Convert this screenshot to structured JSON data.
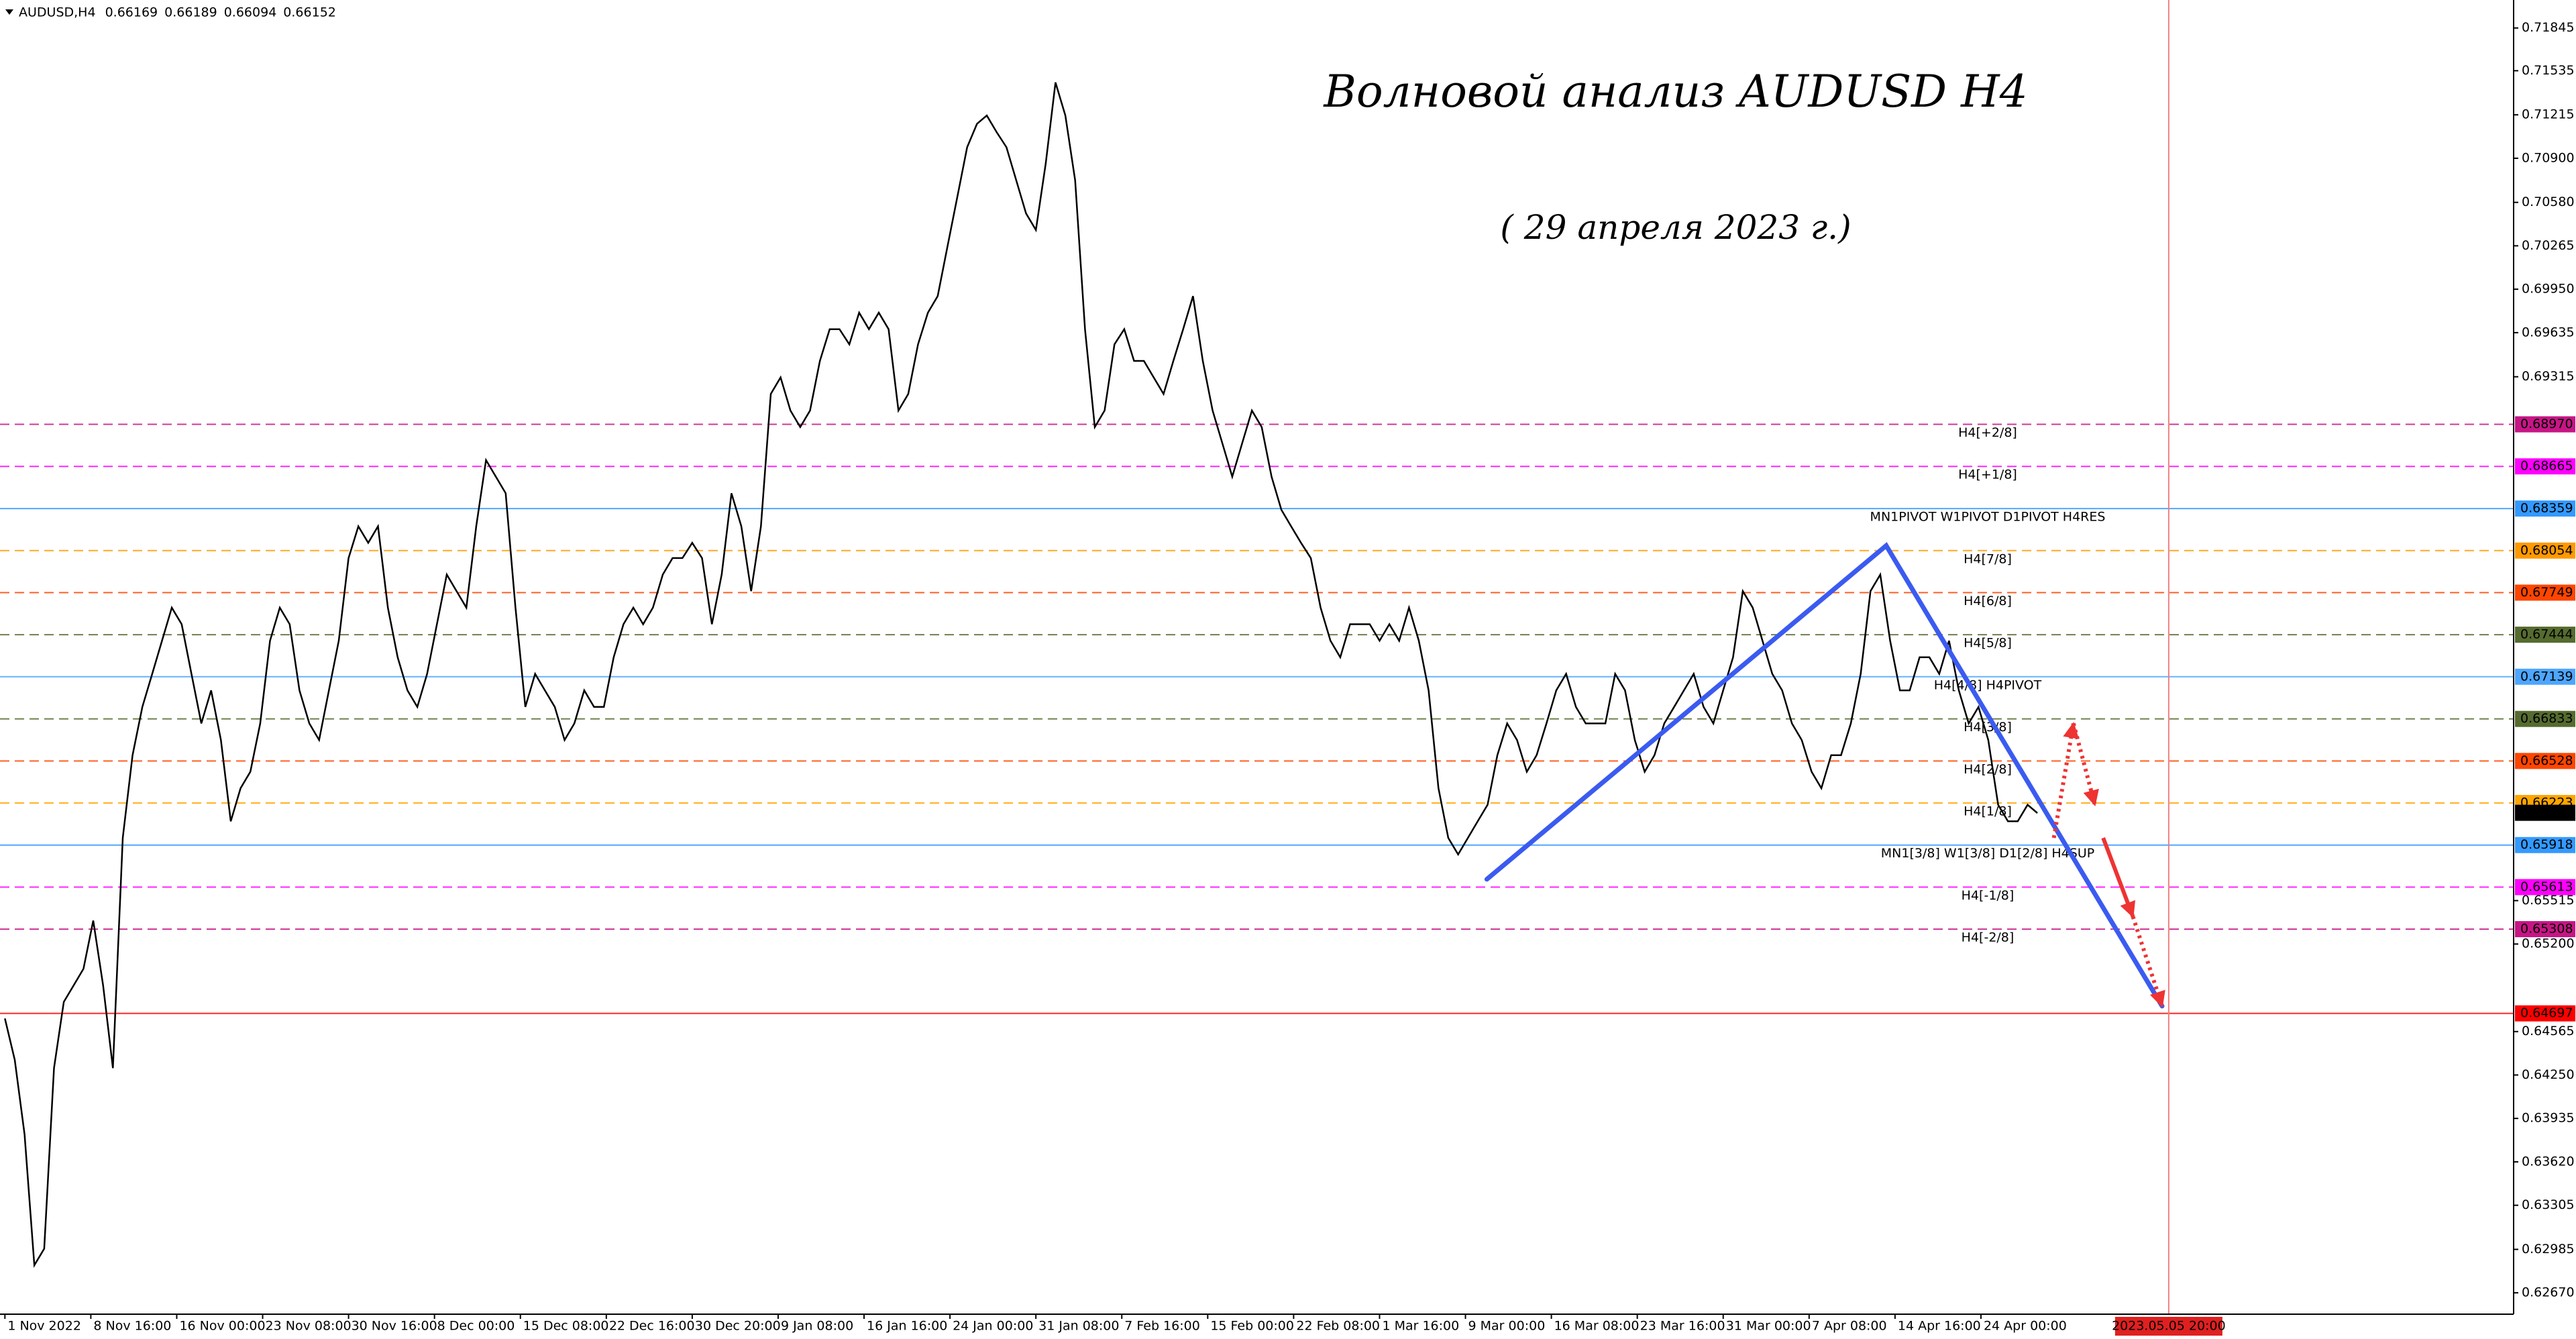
{
  "chart_data": {
    "type": "line",
    "symbol": "AUDUSD,H4",
    "quote": [
      0.66169,
      0.66189,
      0.66094,
      0.66152
    ],
    "title": "Волновой анализ AUDUSD H4",
    "subtitle": "( 29 апреля 2023 г.)",
    "xlim": [
      -2,
      1022
    ],
    "ylim": [
      0.62515,
      0.72048
    ],
    "xticks": [
      {
        "value": 0,
        "label": "1 Nov 2022"
      },
      {
        "value": 35,
        "label": "8 Nov 16:00"
      },
      {
        "value": 70,
        "label": "16 Nov 00:00"
      },
      {
        "value": 105,
        "label": "23 Nov 08:00"
      },
      {
        "value": 140,
        "label": "30 Nov 16:00"
      },
      {
        "value": 175,
        "label": "8 Dec 00:00"
      },
      {
        "value": 210,
        "label": "15 Dec 08:00"
      },
      {
        "value": 245,
        "label": "22 Dec 16:00"
      },
      {
        "value": 280,
        "label": "30 Dec 20:00"
      },
      {
        "value": 315,
        "label": "9 Jan 08:00"
      },
      {
        "value": 350,
        "label": "16 Jan 16:00"
      },
      {
        "value": 385,
        "label": "24 Jan 00:00"
      },
      {
        "value": 420,
        "label": "31 Jan 08:00"
      },
      {
        "value": 455,
        "label": "7 Feb 16:00"
      },
      {
        "value": 490,
        "label": "15 Feb 00:00"
      },
      {
        "value": 525,
        "label": "22 Feb 08:00"
      },
      {
        "value": 560,
        "label": "1 Mar 16:00"
      },
      {
        "value": 595,
        "label": "9 Mar 00:00"
      },
      {
        "value": 630,
        "label": "16 Mar 08:00"
      },
      {
        "value": 665,
        "label": "23 Mar 16:00"
      },
      {
        "value": 700,
        "label": "31 Mar 00:00"
      },
      {
        "value": 735,
        "label": "7 Apr 08:00"
      },
      {
        "value": 770,
        "label": "14 Apr 16:00"
      },
      {
        "value": 805,
        "label": "24 Apr 00:00"
      }
    ],
    "yticks": [
      0.71845,
      0.71535,
      0.71215,
      {
        "value": 0.709,
        "label": "0.70900"
      },
      {
        "value": 0.7058,
        "label": "0.70580"
      },
      0.70265,
      {
        "value": 0.6995,
        "label": "0.69950"
      },
      0.69635,
      0.69315,
      0.65515,
      {
        "value": 0.652,
        "label": "0.65200"
      },
      0.64565,
      {
        "value": 0.6425,
        "label": "0.64250"
      },
      0.63935,
      {
        "value": 0.6362,
        "label": "0.63620"
      },
      0.63305,
      0.62985,
      {
        "value": 0.6267,
        "label": "0.62670"
      }
    ],
    "vline": {
      "value": 881.5,
      "label": "2023.05.05 20:00",
      "color": "#f08080"
    },
    "levels": {
      "names": [
        "H4[+2/8]",
        "H4[+1/8]",
        "MN1PIVOT W1PIVOT D1PIVOT H4RES",
        "H4[7/8]",
        "H4[6/8]",
        "H4[5/8]",
        "H4[4/8] H4PIVOT",
        "H4[3/8]",
        "H4[2/8]",
        "H4[1/8]",
        "MN1[3/8] W1[3/8] D1[2/8] H4SUP",
        "H4[-1/8]",
        "H4[-2/8]",
        null
      ],
      "values": [
        0.6897,
        0.68665,
        0.68359,
        0.68054,
        0.67749,
        0.67444,
        0.67139,
        0.66833,
        0.66528,
        0.66223,
        0.65918,
        0.65613,
        0.65308,
        0.64697
      ],
      "value_labels": [
        "0.68970",
        "0.68665",
        "0.68359",
        "0.68054",
        "0.67749",
        "0.67444",
        "0.67139",
        "0.66833",
        "0.66528",
        "0.66223",
        "0.65918",
        "0.65613",
        "0.65308",
        "0.64697"
      ],
      "colors": [
        "#c71585",
        "#ff00ff",
        "#3399ff",
        "#ff9900",
        "#ff4500",
        "#556b2f",
        "#4da6ff",
        "#556b2f",
        "#ff4500",
        "#ffa500",
        "#3399ff",
        "#ff00ff",
        "#c71585",
        "#ff0000"
      ],
      "dashed": [
        true,
        true,
        false,
        true,
        true,
        true,
        false,
        true,
        true,
        true,
        false,
        true,
        true,
        false
      ]
    },
    "series": [
      {
        "name": "AUDUSD",
        "color": "#000000",
        "x": [
          0,
          4,
          8,
          12,
          16,
          20,
          24,
          28,
          32,
          36,
          40,
          44,
          48,
          52,
          56,
          60,
          64,
          68,
          72,
          76,
          80,
          84,
          88,
          92,
          96,
          100,
          104,
          108,
          112,
          116,
          120,
          124,
          128,
          132,
          136,
          140,
          144,
          148,
          152,
          156,
          160,
          164,
          168,
          172,
          176,
          180,
          184,
          188,
          192,
          196,
          200,
          204,
          208,
          212,
          216,
          220,
          224,
          228,
          232,
          236,
          240,
          244,
          248,
          252,
          256,
          260,
          264,
          268,
          272,
          276,
          280,
          284,
          288,
          292,
          296,
          300,
          304,
          308,
          312,
          316,
          320,
          324,
          328,
          332,
          336,
          340,
          344,
          348,
          352,
          356,
          360,
          364,
          368,
          372,
          376,
          380,
          384,
          388,
          392,
          396,
          400,
          404,
          408,
          412,
          416,
          420,
          424,
          428,
          432,
          436,
          440,
          444,
          448,
          452,
          456,
          460,
          464,
          468,
          472,
          476,
          480,
          484,
          488,
          492,
          496,
          500,
          504,
          508,
          512,
          516,
          520,
          524,
          528,
          532,
          536,
          540,
          544,
          548,
          552,
          556,
          560,
          564,
          568,
          572,
          576,
          580,
          584,
          588,
          592,
          596,
          600,
          604,
          608,
          612,
          616,
          620,
          624,
          628,
          632,
          636,
          640,
          644,
          648,
          652,
          656,
          660,
          664,
          668,
          672,
          676,
          680,
          684,
          688,
          692,
          696,
          700,
          704,
          708,
          712,
          716,
          720,
          724,
          728,
          732,
          736,
          740,
          744,
          748,
          752,
          756,
          760,
          764,
          768,
          772,
          776,
          780,
          784,
          788,
          792,
          796,
          800,
          804,
          808,
          812,
          816,
          820,
          824,
          828
        ],
        "values": [
          0.6466,
          0.6436,
          0.6382,
          0.6287,
          0.6299,
          0.643,
          0.6478,
          0.649,
          0.6502,
          0.6537,
          0.649,
          0.643,
          0.6597,
          0.6657,
          0.6692,
          0.6716,
          0.674,
          0.6764,
          0.6752,
          0.6716,
          0.668,
          0.6704,
          0.6668,
          0.6609,
          0.6633,
          0.6645,
          0.668,
          0.674,
          0.6764,
          0.6752,
          0.6704,
          0.668,
          0.6668,
          0.6704,
          0.674,
          0.68,
          0.6823,
          0.6811,
          0.6823,
          0.6764,
          0.6728,
          0.6704,
          0.6692,
          0.6716,
          0.6752,
          0.6788,
          0.6776,
          0.6764,
          0.6823,
          0.6871,
          0.6859,
          0.6847,
          0.6764,
          0.6692,
          0.6716,
          0.6704,
          0.6692,
          0.6668,
          0.668,
          0.6704,
          0.6692,
          0.6692,
          0.6728,
          0.6752,
          0.6764,
          0.6752,
          0.6764,
          0.6788,
          0.68,
          0.68,
          0.6811,
          0.68,
          0.6752,
          0.6788,
          0.6847,
          0.6823,
          0.6776,
          0.6823,
          0.6919,
          0.6931,
          0.6907,
          0.6895,
          0.6907,
          0.6943,
          0.6966,
          0.6966,
          0.6955,
          0.6978,
          0.6966,
          0.6978,
          0.6966,
          0.6907,
          0.6919,
          0.6955,
          0.6978,
          0.699,
          0.7026,
          0.7062,
          0.7098,
          0.7115,
          0.7121,
          0.7109,
          0.7098,
          0.7074,
          0.705,
          0.7038,
          0.7086,
          0.7145,
          0.7121,
          0.7074,
          0.6966,
          0.6895,
          0.6907,
          0.6955,
          0.6966,
          0.6943,
          0.6943,
          0.6931,
          0.6919,
          0.6943,
          0.6966,
          0.699,
          0.6943,
          0.6907,
          0.6883,
          0.6859,
          0.6883,
          0.6907,
          0.6895,
          0.6859,
          0.6835,
          0.6823,
          0.6811,
          0.68,
          0.6764,
          0.674,
          0.6728,
          0.6752,
          0.6752,
          0.6752,
          0.674,
          0.6752,
          0.674,
          0.6764,
          0.674,
          0.6704,
          0.6633,
          0.6597,
          0.6585,
          0.6597,
          0.6609,
          0.6621,
          0.6657,
          0.668,
          0.6668,
          0.6645,
          0.6657,
          0.668,
          0.6704,
          0.6716,
          0.6692,
          0.668,
          0.668,
          0.668,
          0.6716,
          0.6704,
          0.6668,
          0.6645,
          0.6657,
          0.668,
          0.6692,
          0.6704,
          0.6716,
          0.6692,
          0.668,
          0.6704,
          0.6728,
          0.6776,
          0.6764,
          0.674,
          0.6716,
          0.6704,
          0.668,
          0.6668,
          0.6645,
          0.6633,
          0.6657,
          0.6657,
          0.668,
          0.6716,
          0.6776,
          0.6788,
          0.674,
          0.6704,
          0.6704,
          0.6728,
          0.6728,
          0.6716,
          0.674,
          0.6704,
          0.668,
          0.6692,
          0.6668,
          0.6621,
          0.6609,
          0.6609,
          0.6621,
          0.6615
        ]
      }
    ],
    "wave": {
      "color": "#3b5bf0",
      "x": [
        603.7,
        766.4,
        878.8
      ],
      "y": [
        0.6567,
        0.6809,
        0.6475
      ]
    },
    "forecast": {
      "color": "#ee3333",
      "segments": [
        {
          "x": [
            834.7,
            842.7
          ],
          "y": [
            0.6597,
            0.668
          ],
          "dashed": true
        },
        {
          "x": [
            842.7,
            851.4
          ],
          "y": [
            0.668,
            0.6621
          ],
          "dashed": true
        },
        {
          "x": [
            854.8,
            866.9
          ],
          "y": [
            0.6597,
            0.654
          ],
          "dashed": false
        },
        {
          "x": [
            866.9,
            878.8
          ],
          "y": [
            0.654,
            0.6475
          ],
          "dashed": true
        }
      ]
    }
  }
}
